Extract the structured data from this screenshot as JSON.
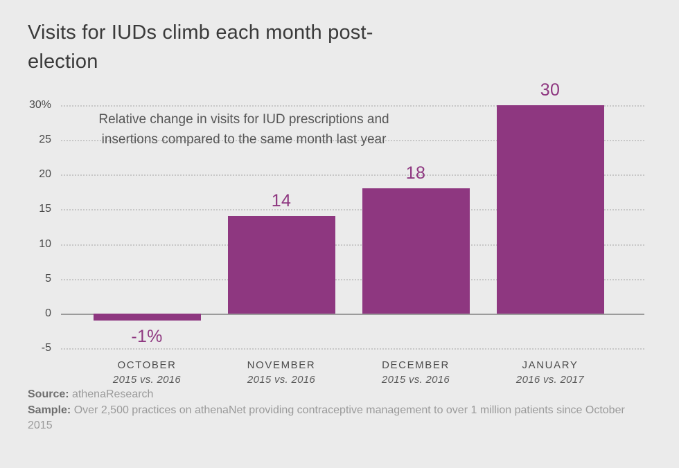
{
  "title": "Visits for IUDs climb each month post-election",
  "annotation": "Relative change in visits for IUD prescriptions and insertions compared to the same month last year",
  "chart_data": {
    "type": "bar",
    "title": "Visits for IUDs climb each month post-election",
    "subtitle": "Relative change in visits for IUD prescriptions and insertions compared to the same month last year",
    "categories": [
      "OCTOBER",
      "NOVEMBER",
      "DECEMBER",
      "JANUARY"
    ],
    "category_periods": [
      "2015 vs. 2016",
      "2015 vs. 2016",
      "2015 vs. 2016",
      "2016 vs. 2017"
    ],
    "values": [
      -1,
      14,
      18,
      30
    ],
    "value_labels": [
      "-1%",
      "14",
      "18",
      "30"
    ],
    "unit": "percent",
    "ylim": [
      -5,
      30
    ],
    "yticks": [
      30,
      25,
      20,
      15,
      10,
      5,
      0,
      -5
    ],
    "ytick_labels": [
      "30%",
      "25",
      "20",
      "15",
      "10",
      "5",
      "0",
      "-5"
    ],
    "grid": "horizontal-dotted",
    "legend": "none",
    "bar_color": "#8e3780"
  },
  "footer": {
    "source_label": "Source:",
    "source_value": "athenaResearch",
    "sample_label": "Sample:",
    "sample_value": "Over 2,500 practices on athenaNet providing contraceptive management to over 1 million patients since October 2015"
  },
  "colors": {
    "background": "#ebebeb",
    "bar": "#8e3780",
    "title_text": "#3a3a3a",
    "axis_text": "#4a4a4a",
    "footer_text": "#9a9a9a"
  }
}
